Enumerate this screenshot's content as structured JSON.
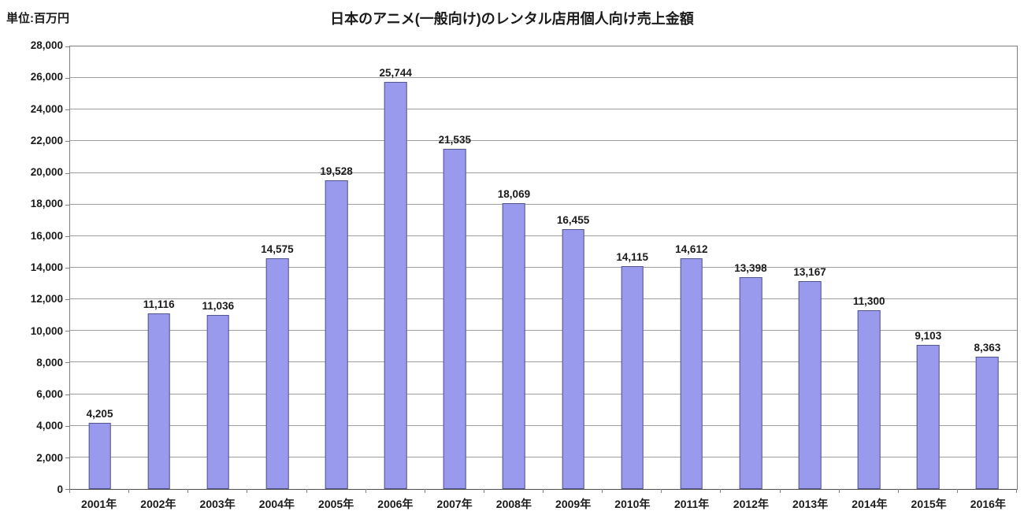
{
  "chart_data": {
    "type": "bar",
    "title": "日本のアニメ(一般向け)のレンタル店用個人向け売上金額",
    "unit_label": "単位:百万円",
    "categories": [
      "2001年",
      "2002年",
      "2003年",
      "2004年",
      "2005年",
      "2006年",
      "2007年",
      "2008年",
      "2009年",
      "2010年",
      "2011年",
      "2012年",
      "2013年",
      "2014年",
      "2015年",
      "2016年"
    ],
    "values": [
      4205,
      11116,
      11036,
      14575,
      19528,
      25744,
      21535,
      18069,
      16455,
      14115,
      14612,
      13398,
      13167,
      11300,
      9103,
      8363
    ],
    "ylim": [
      0,
      28000
    ],
    "ytick_step": 2000,
    "grid": true,
    "legend": "none",
    "bar_fill_color": "#9999ee",
    "bar_border_color": "#54548c",
    "gridline_color": "#9e9e9e",
    "axis_border_color": "#7f7f7f",
    "text_color": "#1a1a1a",
    "background_color": "#ffffff"
  }
}
